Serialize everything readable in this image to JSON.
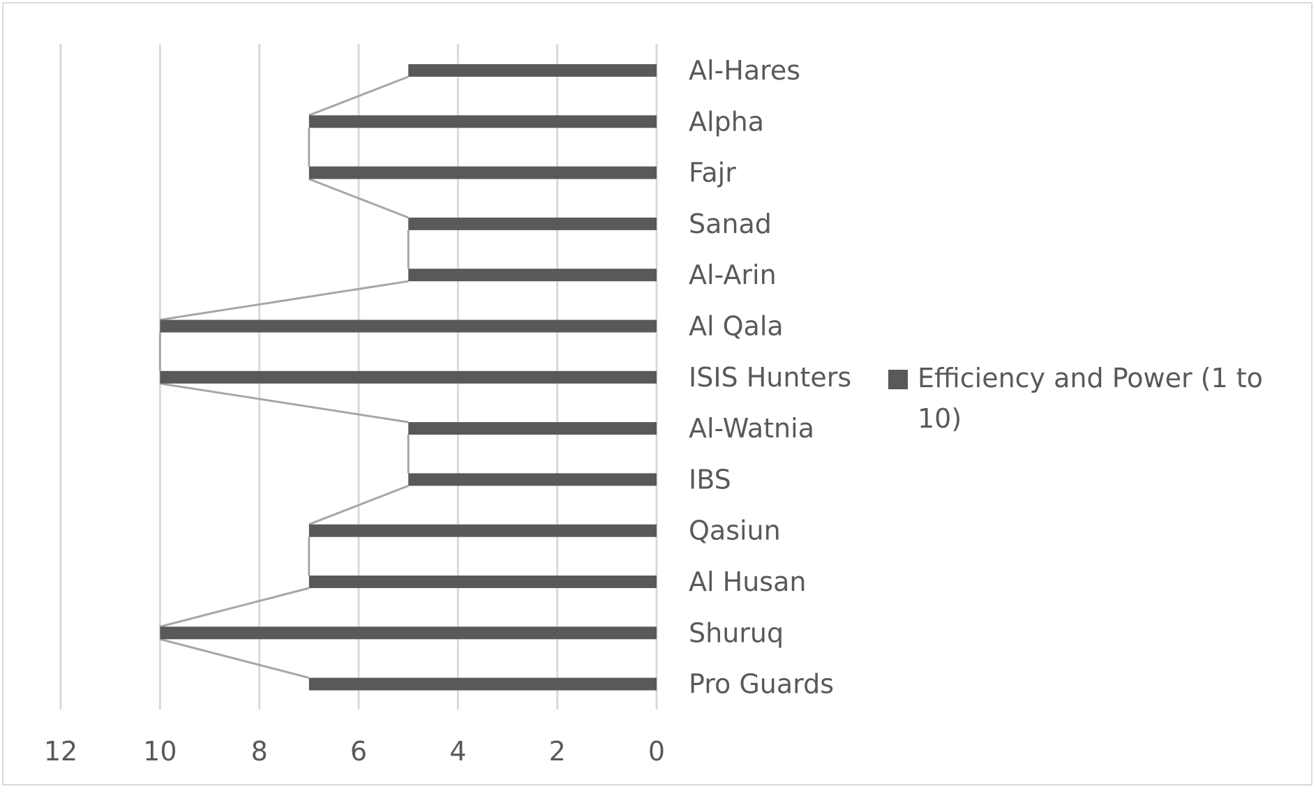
{
  "chart_data": {
    "type": "bar",
    "orientation": "horizontal",
    "x_axis_reversed": true,
    "categories": [
      "Al-Hares",
      "Alpha",
      "Fajr",
      "Sanad",
      "Al-Arin",
      "Al Qala",
      "ISIS Hunters",
      "Al-Watnia",
      "IBS",
      "Qasiun",
      "Al Husan",
      "Shuruq",
      "Pro Guards"
    ],
    "series": [
      {
        "name": "Efficiency and Power  (1 to 10)",
        "values": [
          5,
          7,
          7,
          5,
          5,
          10,
          10,
          5,
          5,
          7,
          7,
          10,
          7
        ],
        "color": "#595959"
      }
    ],
    "series_lines": true,
    "series_line_color": "#a6a6a6",
    "xlim": [
      0,
      12
    ],
    "x_ticks": [
      "0",
      "2",
      "4",
      "6",
      "8",
      "10",
      "12"
    ],
    "grid": true,
    "gridline_color": "#d9d9d9",
    "legend_position": "right",
    "legend": {
      "label_line1": "Efficiency and Power  (1 to",
      "label_line2": "10)"
    },
    "title": "",
    "xlabel": "",
    "ylabel": ""
  }
}
